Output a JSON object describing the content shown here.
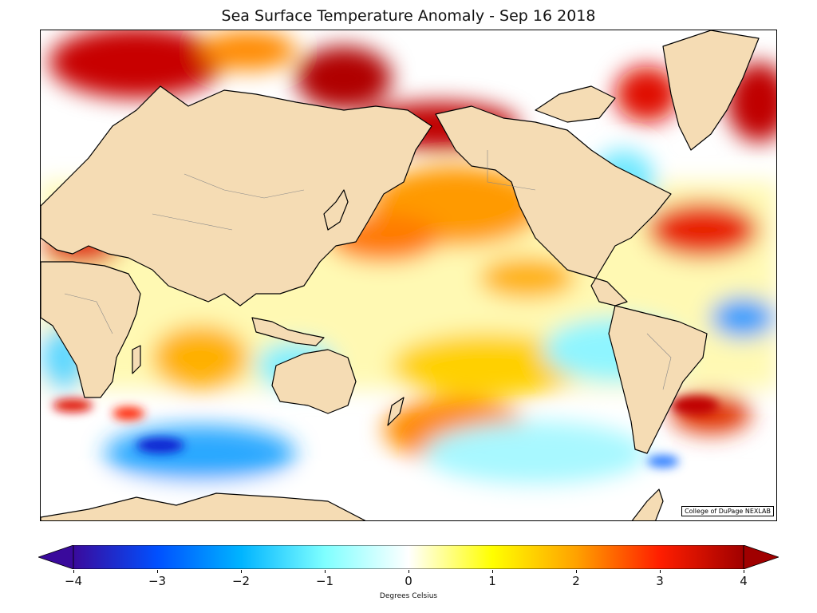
{
  "title": "Sea Surface Temperature Anomaly - Sep 16 2018",
  "credit": "College of DuPage NEXLAB",
  "colorbar": {
    "label": "Degrees Celsius",
    "min": -4,
    "max": 4,
    "extend": "both",
    "ticks": [
      {
        "value": -4,
        "label": "−4"
      },
      {
        "value": -3,
        "label": "−3"
      },
      {
        "value": -2,
        "label": "−2"
      },
      {
        "value": -1,
        "label": "−1"
      },
      {
        "value": 0,
        "label": "0"
      },
      {
        "value": 1,
        "label": "1"
      },
      {
        "value": 2,
        "label": "2"
      },
      {
        "value": 3,
        "label": "3"
      },
      {
        "value": 4,
        "label": "4"
      }
    ],
    "colors": [
      "#3a0a9c",
      "#0050ff",
      "#00b4ff",
      "#7fffff",
      "#ffffff",
      "#ffff00",
      "#ffa200",
      "#ff1e00",
      "#a00000"
    ]
  },
  "map": {
    "land_color": "#f5dcb4",
    "ocean_color": "#ffffff",
    "coast_color": "#000000"
  }
}
